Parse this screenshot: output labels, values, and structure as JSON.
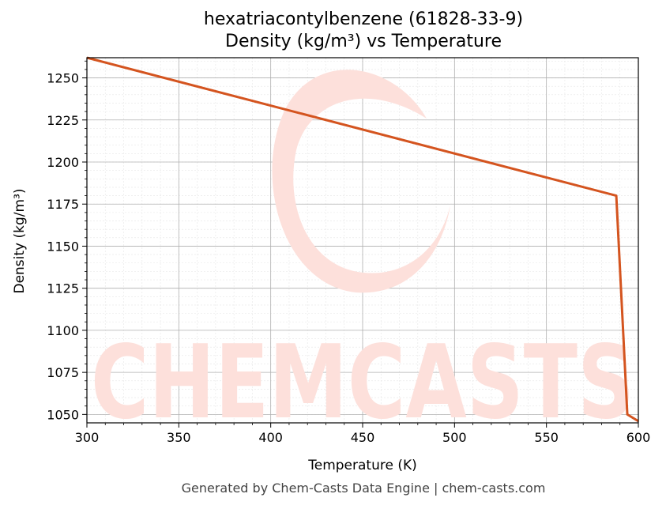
{
  "chart_data": {
    "type": "line",
    "title": "hexatriacontylbenzene (61828-33-9)",
    "subtitle": "Density (kg/m³) vs Temperature",
    "xlabel": "Temperature (K)",
    "ylabel": "Density (kg/m³)",
    "xlim": [
      300,
      600
    ],
    "ylim": [
      1045,
      1262
    ],
    "x_ticks": [
      300,
      350,
      400,
      450,
      500,
      550,
      600
    ],
    "y_ticks": [
      1050,
      1075,
      1100,
      1125,
      1150,
      1175,
      1200,
      1225,
      1250
    ],
    "grid": true,
    "series": [
      {
        "x": [
          300,
          588,
          594,
          600
        ],
        "y": [
          1262,
          1180,
          1050,
          1046
        ]
      }
    ],
    "colors": {
      "line": "#d4541f",
      "watermark": "#fde0db"
    }
  },
  "watermark_text": "CHEMCASTS",
  "footer": "Generated by Chem-Casts Data Engine | chem-casts.com"
}
